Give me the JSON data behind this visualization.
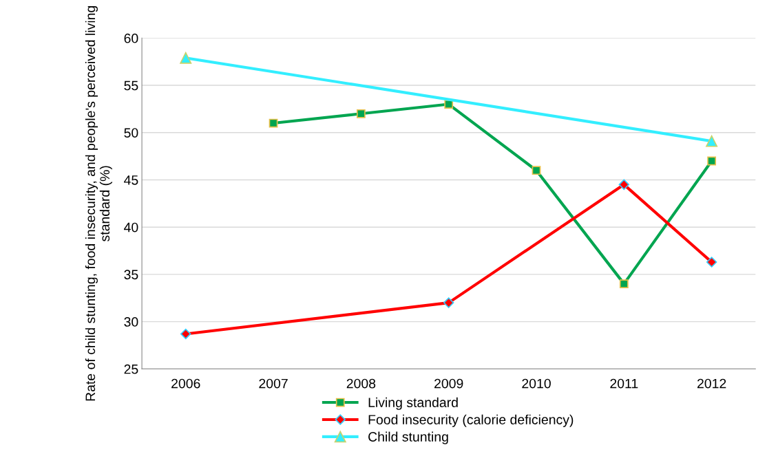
{
  "chart_data": {
    "type": "line",
    "ylabel": "Rate of child stunting, food insecurity, and people's perceived living standard (%)",
    "categories": [
      "2006",
      "2007",
      "2008",
      "2009",
      "2010",
      "2011",
      "2012"
    ],
    "ylim": [
      25,
      60
    ],
    "yticks": [
      25,
      30,
      35,
      40,
      45,
      50,
      55,
      60
    ],
    "grid": "y",
    "legend": "bottom",
    "series": [
      {
        "name": "Living standard",
        "color": "#00a550",
        "marker": "square",
        "values": [
          null,
          51,
          52,
          53,
          46,
          34,
          47
        ]
      },
      {
        "name": "Food insecurity (calorie deficiency)",
        "color": "#ff0000",
        "marker": "diamond",
        "values": [
          28.7,
          null,
          null,
          32,
          null,
          44.5,
          36.3
        ]
      },
      {
        "name": "Child stunting",
        "color": "#33eeff",
        "marker": "triangle",
        "values": [
          57.9,
          null,
          null,
          null,
          null,
          null,
          49.1
        ]
      }
    ]
  }
}
